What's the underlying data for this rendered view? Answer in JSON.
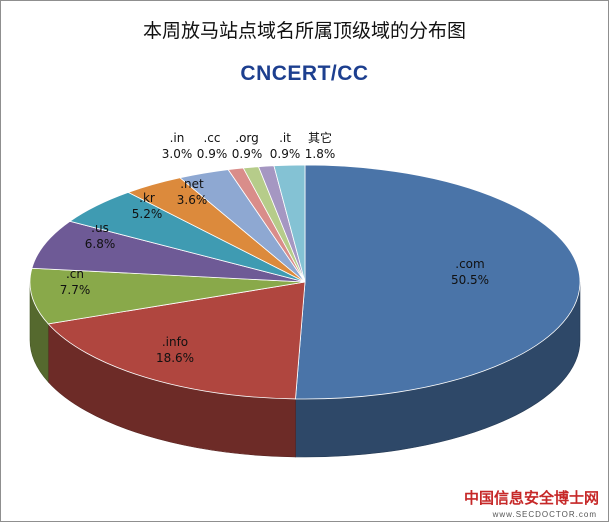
{
  "chart_data": {
    "type": "pie",
    "title": "本周放马站点域名所属顶级域的分布图",
    "logo": "CNCERT/CC",
    "slices": [
      {
        "label": ".com",
        "value": 50.5,
        "value_label": "50.5%",
        "color": "#4a74a8"
      },
      {
        "label": ".info",
        "value": 18.6,
        "value_label": "18.6%",
        "color": "#b0463f"
      },
      {
        "label": ".cn",
        "value": 7.7,
        "value_label": "7.7%",
        "color": "#89a94a"
      },
      {
        "label": ".us",
        "value": 6.8,
        "value_label": "6.8%",
        "color": "#6e5a96"
      },
      {
        "label": ".kr",
        "value": 5.2,
        "value_label": "5.2%",
        "color": "#3f9bb2"
      },
      {
        "label": ".net",
        "value": 3.6,
        "value_label": "3.6%",
        "color": "#dc8a3c"
      },
      {
        "label": ".in",
        "value": 3.0,
        "value_label": "3.0%",
        "color": "#8ea8d2"
      },
      {
        "label": ".cc",
        "value": 0.9,
        "value_label": "0.9%",
        "color": "#d98d8a"
      },
      {
        "label": ".org",
        "value": 0.9,
        "value_label": "0.9%",
        "color": "#b6cc8a"
      },
      {
        "label": ".it",
        "value": 0.9,
        "value_label": "0.9%",
        "color": "#a597c2"
      },
      {
        "label": "其它",
        "value": 1.8,
        "value_label": "1.8%",
        "color": "#84c2d4"
      }
    ]
  },
  "watermark": {
    "text": "中国信息安全博士网",
    "url": "www.SECDOCTOR.com"
  }
}
